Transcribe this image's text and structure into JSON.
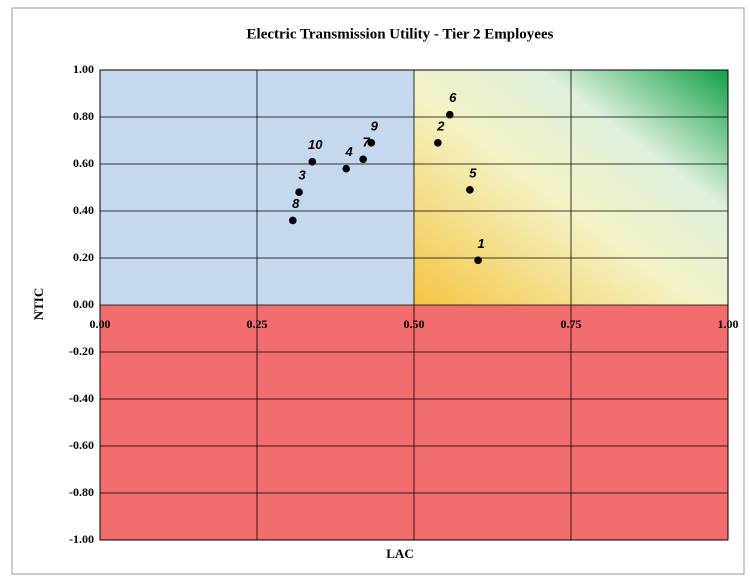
{
  "chart_data": {
    "type": "scatter",
    "title": "Electric Transmission  Utility  - Tier 2 Employees",
    "x_label": "LAC",
    "y_label": "NTIC",
    "x": [
      0.602,
      0.538,
      0.317,
      0.392,
      0.589,
      0.557,
      0.419,
      0.307,
      0.432,
      0.338
    ],
    "y": [
      0.19,
      0.69,
      0.48,
      0.58,
      0.49,
      0.81,
      0.62,
      0.36,
      0.69,
      0.61
    ],
    "labels": [
      "1",
      "2",
      "3",
      "4",
      "5",
      "6",
      "7",
      "8",
      "9",
      "10"
    ],
    "color": "#000000",
    "xlim": [
      0,
      1
    ],
    "ylim": [
      -1,
      1
    ],
    "xticks": [
      {
        "value": 0,
        "label": "0.00"
      },
      {
        "value": 0.25,
        "label": "0.25"
      },
      {
        "value": 0.5,
        "label": "0.50"
      },
      {
        "value": 0.75,
        "label": "0.75"
      },
      {
        "value": 1,
        "label": "1.00"
      }
    ],
    "yticks": [
      {
        "value": 1,
        "label": "1.00"
      },
      {
        "value": 0.8,
        "label": "0.80"
      },
      {
        "value": 0.6,
        "label": "0.60"
      },
      {
        "value": 0.4,
        "label": "0.40"
      },
      {
        "value": 0.2,
        "label": "0.20"
      },
      {
        "value": 0,
        "label": "0.00"
      },
      {
        "value": -0.2,
        "label": "-0.20"
      },
      {
        "value": -0.4,
        "label": "-0.40"
      },
      {
        "value": -0.6,
        "label": "-0.60"
      },
      {
        "value": -0.8,
        "label": "-0.80"
      },
      {
        "value": -1,
        "label": "-1.00"
      }
    ],
    "grid": true
  }
}
